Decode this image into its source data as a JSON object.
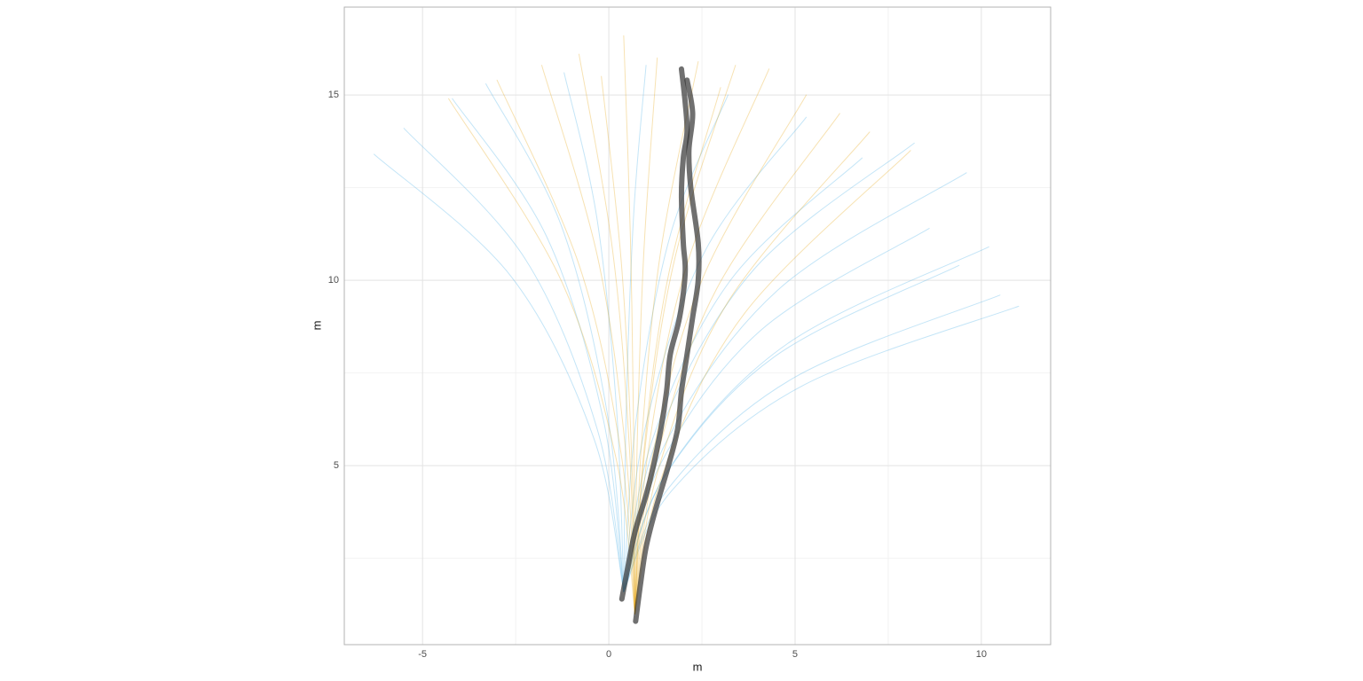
{
  "chart_data": {
    "type": "line",
    "xlabel": "m",
    "ylabel": "m",
    "xlim": [
      -7.1,
      11.86
    ],
    "ylim": [
      0.17,
      17.37
    ],
    "xticks": [
      -5,
      0,
      5,
      10
    ],
    "yticks": [
      5,
      10,
      15
    ],
    "xminor": [
      -2.5,
      2.5,
      7.5
    ],
    "yminor": [
      2.5,
      7.5,
      12.5
    ],
    "grid": true,
    "series": [
      {
        "color": "#56b4e9",
        "width": 1,
        "opacity": 0.35,
        "lines": [
          {
            "x": [
              0.4,
              -0.4,
              -2.62,
              -6.3
            ],
            "y": [
              1.6,
              5.73,
              10.1,
              13.4
            ]
          },
          {
            "x": [
              0.4,
              -0.31,
              -2.26,
              -5.5
            ],
            "y": [
              1.6,
              5.98,
              10.6,
              14.1
            ]
          },
          {
            "x": [
              0.4,
              -0.04,
              -1.27,
              -3.3
            ],
            "y": [
              1.6,
              6.4,
              11.46,
              15.3
            ]
          },
          {
            "x": [
              0.4,
              0.21,
              -0.32,
              -1.2
            ],
            "y": [
              1.6,
              6.5,
              11.68,
              15.6
            ]
          },
          {
            "x": [
              0.4,
              0.47,
              0.67,
              1.0
            ],
            "y": [
              1.6,
              6.57,
              11.82,
              15.8
            ]
          },
          {
            "x": [
              0.4,
              0.74,
              1.66,
              3.2
            ],
            "y": [
              1.6,
              6.29,
              11.25,
              15.0
            ]
          },
          {
            "x": [
              0.4,
              0.99,
              2.6,
              5.3
            ],
            "y": [
              1.6,
              6.08,
              10.82,
              14.4
            ]
          },
          {
            "x": [
              0.4,
              1.17,
              3.28,
              6.8
            ],
            "y": [
              1.6,
              5.7,
              10.02,
              13.3
            ]
          },
          {
            "x": [
              0.4,
              1.34,
              3.91,
              8.2
            ],
            "y": [
              1.6,
              5.84,
              10.31,
              13.7
            ]
          },
          {
            "x": [
              0.4,
              1.38,
              4.09,
              8.6
            ],
            "y": [
              1.6,
              5.03,
              8.66,
              11.4
            ]
          },
          {
            "x": [
              0.4,
              1.5,
              4.54,
              9.6
            ],
            "y": [
              1.6,
              5.56,
              9.74,
              12.9
            ]
          },
          {
            "x": [
              0.4,
              1.48,
              4.45,
              9.4
            ],
            "y": [
              1.6,
              4.68,
              7.94,
              10.4
            ]
          },
          {
            "x": [
              0.4,
              1.58,
              4.81,
              10.2
            ],
            "y": [
              1.6,
              4.86,
              8.3,
              10.9
            ]
          },
          {
            "x": [
              0.4,
              1.67,
              5.17,
              11.0
            ],
            "y": [
              1.6,
              4.3,
              7.14,
              9.3
            ]
          },
          {
            "x": [
              0.4,
              1.61,
              4.95,
              10.5
            ],
            "y": [
              1.6,
              4.4,
              7.36,
              9.6
            ]
          },
          {
            "x": [
              0.4,
              -0.15,
              -1.67,
              -4.2
            ],
            "y": [
              1.6,
              6.26,
              11.18,
              14.9
            ]
          }
        ]
      },
      {
        "color": "#e69f00",
        "width": 1,
        "opacity": 0.3,
        "lines": [
          {
            "x": [
              0.7,
              0.2,
              -1.3,
              -4.3
            ],
            "y": [
              1.0,
              5.17,
              10.04,
              14.9
            ]
          },
          {
            "x": [
              0.7,
              0.33,
              -0.78,
              -3.0
            ],
            "y": [
              1.0,
              5.32,
              10.36,
              15.4
            ]
          },
          {
            "x": [
              0.7,
              0.45,
              -0.3,
              -1.8
            ],
            "y": [
              1.0,
              5.44,
              10.62,
              15.8
            ]
          },
          {
            "x": [
              0.7,
              0.55,
              0.1,
              -0.8
            ],
            "y": [
              1.0,
              5.53,
              10.82,
              16.1
            ]
          },
          {
            "x": [
              0.7,
              0.67,
              0.58,
              0.4
            ],
            "y": [
              1.0,
              5.68,
              11.14,
              16.6
            ]
          },
          {
            "x": [
              0.7,
              0.76,
              0.94,
              1.3
            ],
            "y": [
              1.0,
              5.5,
              10.75,
              16.0
            ]
          },
          {
            "x": [
              0.7,
              0.87,
              1.38,
              2.4
            ],
            "y": [
              1.0,
              5.47,
              10.69,
              15.9
            ]
          },
          {
            "x": [
              0.7,
              0.97,
              1.78,
              3.4
            ],
            "y": [
              1.0,
              5.44,
              10.62,
              15.8
            ]
          },
          {
            "x": [
              0.7,
              1.06,
              2.14,
              4.3
            ],
            "y": [
              1.0,
              5.41,
              10.56,
              15.7
            ]
          },
          {
            "x": [
              0.7,
              1.16,
              2.54,
              5.3
            ],
            "y": [
              1.0,
              5.2,
              10.1,
              15.0
            ]
          },
          {
            "x": [
              0.7,
              1.25,
              2.9,
              6.2
            ],
            "y": [
              1.0,
              5.05,
              9.78,
              14.5
            ]
          },
          {
            "x": [
              0.7,
              1.33,
              3.22,
              7.0
            ],
            "y": [
              1.0,
              4.9,
              9.45,
              14.0
            ]
          },
          {
            "x": [
              0.7,
              1.44,
              3.66,
              8.1
            ],
            "y": [
              1.0,
              4.75,
              9.13,
              13.5
            ]
          },
          {
            "x": [
              0.7,
              0.61,
              0.34,
              -0.2
            ],
            "y": [
              1.0,
              5.35,
              10.43,
              15.5
            ]
          },
          {
            "x": [
              0.7,
              0.93,
              1.62,
              3.0
            ],
            "y": [
              1.0,
              5.26,
              10.23,
              15.2
            ]
          }
        ]
      },
      {
        "color": "#333333",
        "width": 6,
        "opacity": 0.7,
        "lines": [
          {
            "x": [
              0.35,
              0.5,
              0.7,
              1.0,
              1.2,
              1.4,
              1.55,
              1.65,
              1.9,
              2.05,
              2.0,
              1.95,
              2.0,
              2.1,
              2.05,
              1.95
            ],
            "y": [
              1.4,
              2.2,
              3.2,
              4.2,
              5.0,
              6.0,
              7.0,
              8.0,
              9.0,
              10.2,
              11.0,
              12.3,
              13.3,
              14.0,
              14.8,
              15.7
            ]
          },
          {
            "x": [
              0.72,
              0.85,
              1.0,
              1.25,
              1.6,
              1.85,
              1.95,
              2.1,
              2.25,
              2.4,
              2.4,
              2.2,
              2.15,
              2.25,
              2.1
            ],
            "y": [
              0.8,
              1.8,
              2.8,
              3.8,
              5.0,
              6.0,
              7.0,
              8.0,
              9.0,
              10.0,
              11.0,
              12.5,
              13.5,
              14.5,
              15.4
            ]
          }
        ]
      }
    ]
  }
}
